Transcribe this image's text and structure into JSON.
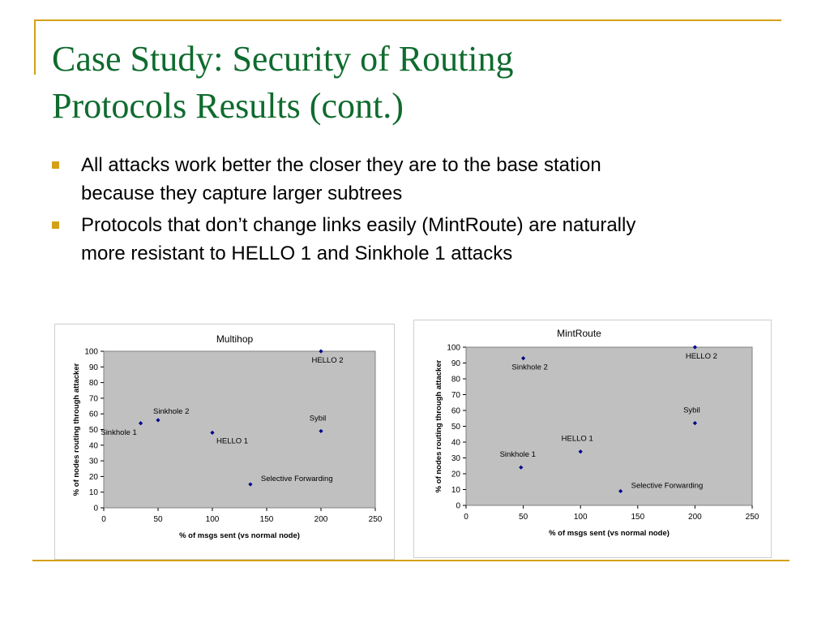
{
  "slide": {
    "title_lines": [
      "Case Study: Security of Routing",
      "Protocols Results (cont.)"
    ],
    "bullets": [
      {
        "lines": [
          "All attacks work better the closer they are to the base station",
          "because they capture larger subtrees"
        ]
      },
      {
        "lines": [
          "Protocols that don’t change links easily (MintRoute) are naturally",
          "more resistant to HELLO 1 and Sinkhole 1 attacks"
        ]
      }
    ],
    "colors": {
      "title": "#0f6b2e",
      "accent": "#d4a017",
      "plot_bg": "#c0c0c0",
      "marker": "#00008b"
    }
  },
  "chart_data": [
    {
      "type": "scatter",
      "title": "Multihop",
      "xlabel": "% of msgs sent (vs normal node)",
      "ylabel": "% of nodes routing through attacker",
      "xlim": [
        0,
        250
      ],
      "ylim": [
        0,
        100
      ],
      "xticks": [
        0,
        50,
        100,
        150,
        200,
        250
      ],
      "yticks": [
        0,
        10,
        20,
        30,
        40,
        50,
        60,
        70,
        80,
        90,
        100
      ],
      "grid": false,
      "points": [
        {
          "label": "Sinkhole 1",
          "x": 34,
          "y": 54,
          "label_pos": "below-left"
        },
        {
          "label": "Sinkhole 2",
          "x": 50,
          "y": 56,
          "label_pos": "above-right"
        },
        {
          "label": "HELLO 1",
          "x": 100,
          "y": 48,
          "label_pos": "below-right"
        },
        {
          "label": "Selective Forwarding",
          "x": 135,
          "y": 15,
          "label_pos": "above-right"
        },
        {
          "label": "HELLO 2",
          "x": 200,
          "y": 100,
          "label_pos": "below"
        },
        {
          "label": "Sybil",
          "x": 200,
          "y": 49,
          "label_pos": "above"
        }
      ]
    },
    {
      "type": "scatter",
      "title": "MintRoute",
      "xlabel": "% of msgs sent (vs normal node)",
      "ylabel": "% of nodes routing through attacker",
      "xlim": [
        0,
        250
      ],
      "ylim": [
        0,
        100
      ],
      "xticks": [
        0,
        50,
        100,
        150,
        200,
        250
      ],
      "yticks": [
        0,
        10,
        20,
        30,
        40,
        50,
        60,
        70,
        80,
        90,
        100
      ],
      "grid": false,
      "points": [
        {
          "label": "Sinkhole 2",
          "x": 50,
          "y": 93,
          "label_pos": "below"
        },
        {
          "label": "Sinkhole 1",
          "x": 48,
          "y": 24,
          "label_pos": "above"
        },
        {
          "label": "HELLO 1",
          "x": 100,
          "y": 34,
          "label_pos": "above"
        },
        {
          "label": "Selective Forwarding",
          "x": 135,
          "y": 9,
          "label_pos": "above-right"
        },
        {
          "label": "HELLO 2",
          "x": 200,
          "y": 100,
          "label_pos": "below"
        },
        {
          "label": "Sybil",
          "x": 200,
          "y": 52,
          "label_pos": "above"
        }
      ]
    }
  ]
}
